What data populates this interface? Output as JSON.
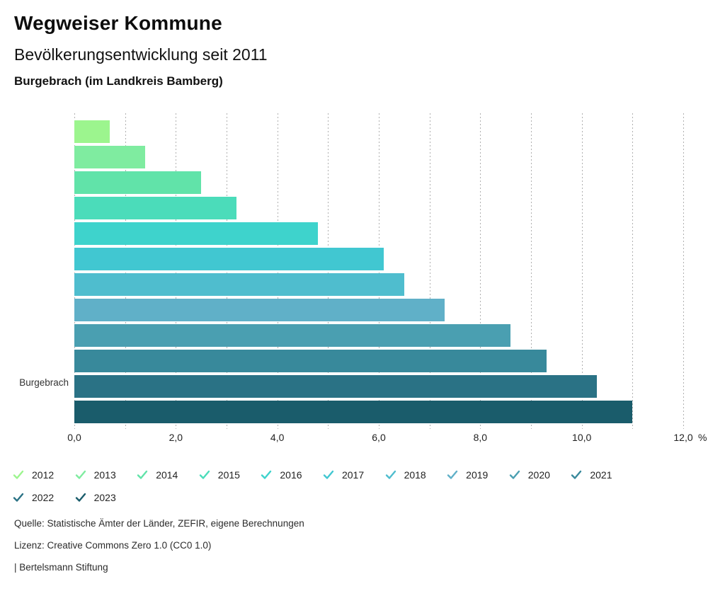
{
  "header": {
    "title": "Wegweiser Kommune",
    "subtitle": "Bevölkerungsentwicklung seit 2011",
    "region": "Burgebrach (im Landkreis Bamberg)"
  },
  "chart_data": {
    "type": "bar",
    "orientation": "horizontal",
    "title": "Bevölkerungsentwicklung seit 2011",
    "category_label": "Burgebrach",
    "unit": "%",
    "xlim": [
      0,
      12
    ],
    "gridline_step": 1,
    "grid": "dashed-vertical",
    "legend_position": "bottom",
    "x_tick_values": [
      0,
      2,
      4,
      6,
      8,
      10,
      12
    ],
    "x_tick_labels": [
      "0,0",
      "2,0",
      "4,0",
      "6,0",
      "8,0",
      "10,0",
      "12,0"
    ],
    "series": [
      {
        "name": "2012",
        "value": 0.7,
        "color": "#9cf58e"
      },
      {
        "name": "2013",
        "value": 1.4,
        "color": "#7feca0"
      },
      {
        "name": "2014",
        "value": 2.5,
        "color": "#61e3a9"
      },
      {
        "name": "2015",
        "value": 3.2,
        "color": "#4bdcba"
      },
      {
        "name": "2016",
        "value": 4.8,
        "color": "#3ed3cc"
      },
      {
        "name": "2017",
        "value": 6.1,
        "color": "#41c7d1"
      },
      {
        "name": "2018",
        "value": 6.5,
        "color": "#4fbdce"
      },
      {
        "name": "2019",
        "value": 7.3,
        "color": "#60b0c8"
      },
      {
        "name": "2020",
        "value": 8.6,
        "color": "#4a9fb1"
      },
      {
        "name": "2021",
        "value": 9.3,
        "color": "#38899b"
      },
      {
        "name": "2022",
        "value": 10.3,
        "color": "#2a7285"
      },
      {
        "name": "2023",
        "value": 11.0,
        "color": "#1a5c6b"
      }
    ]
  },
  "footer": {
    "source": "Quelle: Statistische Ämter der Länder, ZEFIR, eigene Berechnungen",
    "license": "Lizenz: Creative Commons Zero 1.0 (CC0 1.0)",
    "attribution": "| Bertelsmann Stiftung"
  }
}
